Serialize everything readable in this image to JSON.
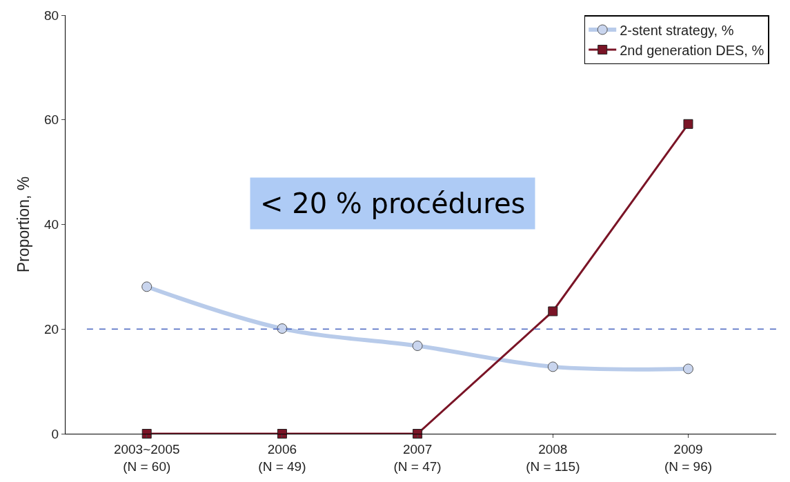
{
  "chart_data": {
    "type": "line",
    "ylabel": "Proportion, %",
    "categories": [
      "2003~2005\n(N = 60)",
      "2006\n(N = 49)",
      "2007\n(N = 47)",
      "2008\n(N = 115)",
      "2009\n(N = 96)"
    ],
    "series": [
      {
        "name": "2-stent strategy, %",
        "color": "#b8cbea",
        "marker": "circle",
        "values": [
          28.1,
          20.1,
          16.8,
          12.8,
          12.4
        ]
      },
      {
        "name": "2nd generation DES, %",
        "color": "#7a1426",
        "marker": "square",
        "values": [
          0,
          0,
          0,
          23.4,
          59.2
        ]
      }
    ],
    "ylim": [
      0,
      80
    ],
    "yticks": [
      0,
      20,
      40,
      60,
      80
    ],
    "ref_lines": [
      {
        "axis": "y",
        "value": 20,
        "color": "#4a66c0",
        "line_style": "dashed"
      }
    ],
    "annotations": [
      "< 20 % procédures"
    ],
    "legend": "top right"
  }
}
